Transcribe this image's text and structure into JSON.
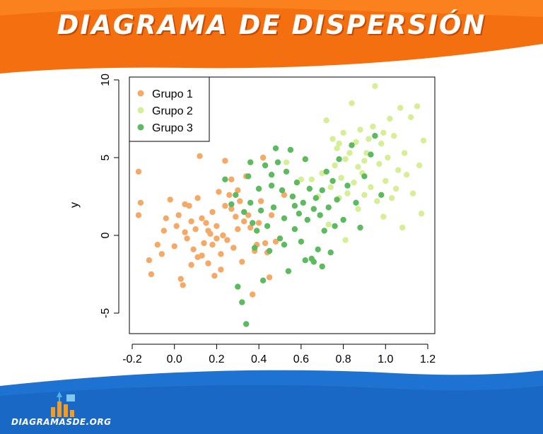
{
  "banner": {
    "title": "DIAGRAMA DE DISPERSIÓN"
  },
  "footer": {
    "site": "DIAGRAMASDE.ORG",
    "logo_icon": "bar-chart-icon"
  },
  "colors": {
    "banner": "#f36f0f",
    "footer": "#1e73d2",
    "grupo1": "#f5a966",
    "grupo2": "#d6ee95",
    "grupo3": "#5cba5f"
  },
  "chart_data": {
    "type": "scatter",
    "title": "",
    "xlabel": "",
    "ylabel": "y",
    "xlim": [
      -0.2,
      1.2
    ],
    "ylim": [
      -5,
      10
    ],
    "xticks": [
      "-0.2",
      "0.0",
      "0.2",
      "0.4",
      "0.6",
      "0.8",
      "1.0",
      "1.2"
    ],
    "yticks": [
      "-5",
      "0",
      "5",
      "10"
    ],
    "grid": false,
    "legend": "top-left",
    "series": [
      {
        "name": "Grupo 1",
        "color": "#f5a966",
        "points": [
          [
            -0.17,
            4.1
          ],
          [
            -0.16,
            2.1
          ],
          [
            -0.17,
            1.3
          ],
          [
            -0.12,
            -1.6
          ],
          [
            -0.11,
            -2.5
          ],
          [
            -0.08,
            -0.6
          ],
          [
            -0.06,
            -1.2
          ],
          [
            -0.05,
            0.3
          ],
          [
            -0.04,
            1.1
          ],
          [
            -0.02,
            2.3
          ],
          [
            0.0,
            -0.7
          ],
          [
            0.01,
            0.6
          ],
          [
            0.02,
            1.3
          ],
          [
            0.03,
            -2.8
          ],
          [
            0.04,
            -3.2
          ],
          [
            0.05,
            0.2
          ],
          [
            0.06,
            -0.2
          ],
          [
            0.07,
            1.9
          ],
          [
            0.08,
            0.9
          ],
          [
            0.09,
            -0.9
          ],
          [
            0.1,
            0.4
          ],
          [
            0.11,
            2.4
          ],
          [
            0.11,
            -1.4
          ],
          [
            0.12,
            5.1
          ],
          [
            0.13,
            1.1
          ],
          [
            0.14,
            -0.5
          ],
          [
            0.15,
            0.8
          ],
          [
            0.16,
            -1.8
          ],
          [
            0.17,
            0.1
          ],
          [
            0.18,
            1.5
          ],
          [
            0.19,
            -2.6
          ],
          [
            0.2,
            0.6
          ],
          [
            0.21,
            2.8
          ],
          [
            0.22,
            -1.2
          ],
          [
            0.23,
            0.0
          ],
          [
            0.24,
            1.9
          ],
          [
            0.25,
            -0.3
          ],
          [
            0.26,
            2.6
          ],
          [
            0.27,
            3.6
          ],
          [
            0.28,
            -0.8
          ],
          [
            0.29,
            1.2
          ],
          [
            0.3,
            0.4
          ],
          [
            0.31,
            2.2
          ],
          [
            0.32,
            -1.7
          ],
          [
            0.33,
            0.9
          ],
          [
            0.34,
            3.8
          ],
          [
            0.35,
            1.3
          ],
          [
            0.36,
            0.5
          ],
          [
            0.37,
            -3.8
          ],
          [
            0.38,
            -1.0
          ],
          [
            0.39,
            -0.6
          ],
          [
            0.4,
            0.8
          ],
          [
            0.41,
            2.2
          ],
          [
            0.42,
            5.0
          ],
          [
            0.43,
            -0.5
          ],
          [
            0.44,
            -1.1
          ],
          [
            0.45,
            -2.7
          ],
          [
            0.46,
            1.3
          ],
          [
            0.48,
            -0.4
          ],
          [
            0.52,
            2.6
          ],
          [
            0.05,
            2.0
          ],
          [
            0.13,
            -1.3
          ],
          [
            0.18,
            -0.6
          ],
          [
            0.22,
            -2.2
          ],
          [
            0.27,
            1.7
          ],
          [
            0.08,
            -1.9
          ],
          [
            0.16,
            0.3
          ],
          [
            0.2,
            -0.2
          ],
          [
            0.24,
            4.8
          ],
          [
            0.3,
            2.9
          ]
        ]
      },
      {
        "name": "Grupo 2",
        "color": "#d6ee95",
        "points": [
          [
            0.53,
            4.7
          ],
          [
            0.6,
            3.6
          ],
          [
            0.65,
            3.6
          ],
          [
            0.68,
            2.5
          ],
          [
            0.7,
            4.0
          ],
          [
            0.72,
            7.4
          ],
          [
            0.73,
            0.7
          ],
          [
            0.74,
            3.1
          ],
          [
            0.75,
            6.2
          ],
          [
            0.76,
            4.5
          ],
          [
            0.77,
            5.6
          ],
          [
            0.78,
            2.4
          ],
          [
            0.79,
            3.7
          ],
          [
            0.8,
            6.6
          ],
          [
            0.81,
            4.9
          ],
          [
            0.81,
            -0.3
          ],
          [
            0.82,
            2.7
          ],
          [
            0.83,
            5.3
          ],
          [
            0.84,
            8.5
          ],
          [
            0.85,
            3.4
          ],
          [
            0.86,
            6.0
          ],
          [
            0.87,
            4.4
          ],
          [
            0.87,
            1.7
          ],
          [
            0.88,
            6.8
          ],
          [
            0.89,
            4.0
          ],
          [
            0.9,
            2.6
          ],
          [
            0.91,
            5.3
          ],
          [
            0.92,
            6.2
          ],
          [
            0.93,
            3.1
          ],
          [
            0.94,
            7.0
          ],
          [
            0.95,
            9.6
          ],
          [
            0.96,
            2.2
          ],
          [
            0.97,
            4.6
          ],
          [
            0.98,
            5.9
          ],
          [
            0.99,
            1.2
          ],
          [
            1.0,
            3.5
          ],
          [
            1.01,
            5.0
          ],
          [
            1.02,
            7.5
          ],
          [
            1.03,
            2.4
          ],
          [
            1.04,
            6.4
          ],
          [
            1.05,
            3.0
          ],
          [
            1.06,
            4.2
          ],
          [
            1.07,
            8.2
          ],
          [
            1.08,
            0.5
          ],
          [
            1.09,
            5.3
          ],
          [
            1.1,
            3.9
          ],
          [
            1.12,
            7.6
          ],
          [
            1.13,
            2.7
          ],
          [
            1.15,
            8.3
          ],
          [
            1.16,
            4.5
          ],
          [
            1.17,
            1.4
          ],
          [
            1.18,
            6.1
          ],
          [
            0.99,
            6.6
          ],
          [
            0.9,
            4.8
          ],
          [
            0.78,
            5.9
          ]
        ]
      },
      {
        "name": "Grupo 3",
        "color": "#5cba5f",
        "points": [
          [
            0.24,
            3.6
          ],
          [
            0.27,
            2.0
          ],
          [
            0.29,
            2.6
          ],
          [
            0.3,
            -3.3
          ],
          [
            0.32,
            -4.3
          ],
          [
            0.33,
            1.5
          ],
          [
            0.34,
            -5.7
          ],
          [
            0.35,
            3.8
          ],
          [
            0.36,
            4.7
          ],
          [
            0.36,
            2.1
          ],
          [
            0.37,
            0.8
          ],
          [
            0.38,
            -0.8
          ],
          [
            0.39,
            0.3
          ],
          [
            0.4,
            3.0
          ],
          [
            0.41,
            1.6
          ],
          [
            0.42,
            -2.9
          ],
          [
            0.43,
            4.5
          ],
          [
            0.44,
            0.6
          ],
          [
            0.45,
            -1.0
          ],
          [
            0.46,
            3.2
          ],
          [
            0.47,
            1.8
          ],
          [
            0.48,
            5.6
          ],
          [
            0.49,
            4.7
          ],
          [
            0.5,
            -0.2
          ],
          [
            0.51,
            2.9
          ],
          [
            0.52,
            1.1
          ],
          [
            0.53,
            4.1
          ],
          [
            0.54,
            -2.3
          ],
          [
            0.55,
            5.5
          ],
          [
            0.56,
            2.5
          ],
          [
            0.57,
            0.4
          ],
          [
            0.58,
            3.4
          ],
          [
            0.59,
            1.4
          ],
          [
            0.6,
            -0.4
          ],
          [
            0.61,
            2.1
          ],
          [
            0.62,
            4.9
          ],
          [
            0.63,
            1.0
          ],
          [
            0.64,
            3.0
          ],
          [
            0.65,
            -1.5
          ],
          [
            0.66,
            1.7
          ],
          [
            0.67,
            2.4
          ],
          [
            0.68,
            -0.9
          ],
          [
            0.69,
            1.3
          ],
          [
            0.7,
            2.9
          ],
          [
            0.71,
            0.3
          ],
          [
            0.72,
            4.1
          ],
          [
            0.73,
            1.8
          ],
          [
            0.74,
            -1.1
          ],
          [
            0.75,
            3.5
          ],
          [
            0.76,
            0.6
          ],
          [
            0.77,
            2.3
          ],
          [
            0.78,
            4.9
          ],
          [
            0.8,
            1.0
          ],
          [
            0.82,
            3.2
          ],
          [
            0.84,
            5.8
          ],
          [
            0.86,
            2.1
          ],
          [
            0.88,
            0.5
          ],
          [
            0.9,
            3.8
          ],
          [
            0.93,
            5.2
          ],
          [
            0.95,
            6.4
          ],
          [
            0.98,
            2.6
          ],
          [
            0.62,
            -1.6
          ],
          [
            0.57,
            1.9
          ],
          [
            0.66,
            -1.7
          ],
          [
            0.7,
            -2.0
          ],
          [
            0.52,
            -0.6
          ],
          [
            0.46,
            3.9
          ]
        ]
      }
    ]
  }
}
